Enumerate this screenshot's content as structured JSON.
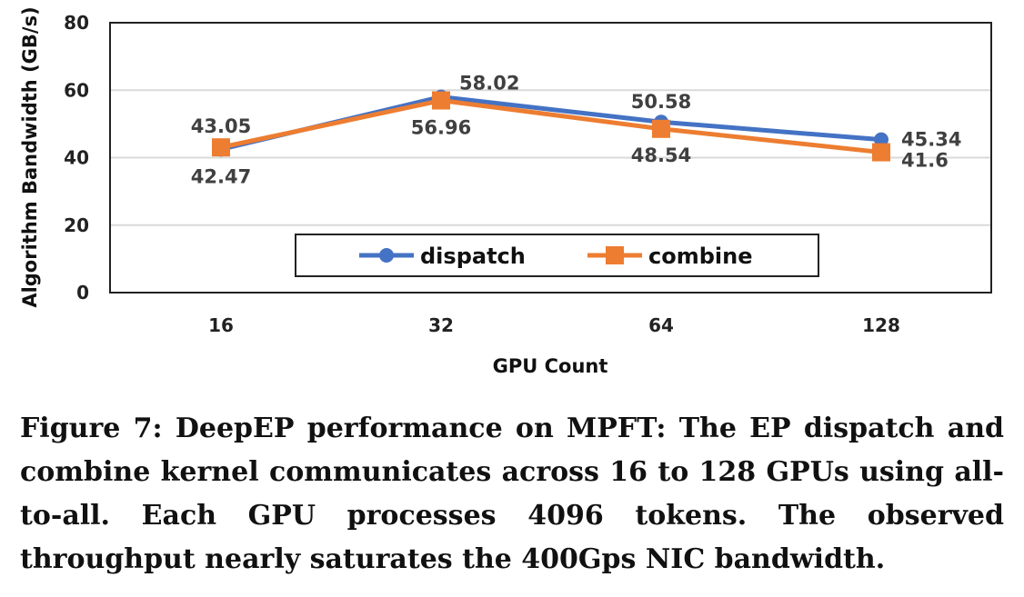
{
  "chart_data": {
    "type": "line",
    "categories": [
      "16",
      "32",
      "64",
      "128"
    ],
    "xlabel": "GPU Count",
    "ylabel": "Algorithm Bandwidth (GB/s)",
    "ylim": [
      0,
      80
    ],
    "yticks": [
      0,
      20,
      40,
      60,
      80
    ],
    "grid": true,
    "legend_position": "bottom-center",
    "series": [
      {
        "name": "dispatch",
        "values": [
          42.47,
          58.02,
          50.58,
          45.34
        ],
        "labels": [
          "42.47",
          "58.02",
          "50.58",
          "45.34"
        ],
        "color": "#4472C4",
        "marker": "circle"
      },
      {
        "name": "combine",
        "values": [
          43.05,
          56.96,
          48.54,
          41.6
        ],
        "labels": [
          "43.05",
          "56.96",
          "48.54",
          "41.6"
        ],
        "color": "#ED7D31",
        "marker": "square"
      }
    ]
  },
  "caption": "Figure 7: DeepEP performance on MPFT: The EP dispatch and combine kernel communicates across 16 to 128 GPUs using all-to-all. Each GPU processes 4096 tokens. The observed throughput nearly saturates the 400Gps NIC bandwidth."
}
